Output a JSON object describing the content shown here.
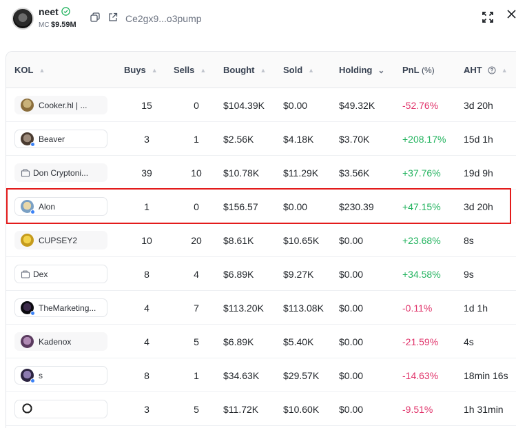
{
  "token": {
    "name": "neet",
    "mc_label": "MC",
    "mc_value": "$9.59M",
    "address": "Ce2gx9...o3pump"
  },
  "colors": {
    "positive": "#22b35e",
    "negative": "#e0336a",
    "highlight": "#e31b1b"
  },
  "table": {
    "columns": {
      "kol": "KOL",
      "buys": "Buys",
      "sells": "Sells",
      "bought": "Bought",
      "sold": "Sold",
      "holding": "Holding",
      "pnl": "PnL",
      "pnl_unit": "(%)",
      "aht": "AHT"
    },
    "rows": [
      {
        "kol": "Cooker.hl | ...",
        "buys": "15",
        "sells": "0",
        "bought": "$104.39K",
        "sold": "$0.00",
        "holding": "$49.32K",
        "pnl": "-52.76%",
        "aht": "3d 20h"
      },
      {
        "kol": "Beaver",
        "buys": "3",
        "sells": "1",
        "bought": "$2.56K",
        "sold": "$4.18K",
        "holding": "$3.70K",
        "pnl": "+208.17%",
        "aht": "15d 1h"
      },
      {
        "kol": "Don Cryptoni...",
        "buys": "39",
        "sells": "10",
        "bought": "$10.78K",
        "sold": "$11.29K",
        "holding": "$3.56K",
        "pnl": "+37.76%",
        "aht": "19d 9h"
      },
      {
        "kol": "Alon",
        "buys": "1",
        "sells": "0",
        "bought": "$156.57",
        "sold": "$0.00",
        "holding": "$230.39",
        "pnl": "+47.15%",
        "aht": "3d 20h"
      },
      {
        "kol": "CUPSEY2",
        "buys": "10",
        "sells": "20",
        "bought": "$8.61K",
        "sold": "$10.65K",
        "holding": "$0.00",
        "pnl": "+23.68%",
        "aht": "8s"
      },
      {
        "kol": "Dex",
        "buys": "8",
        "sells": "4",
        "bought": "$6.89K",
        "sold": "$9.27K",
        "holding": "$0.00",
        "pnl": "+34.58%",
        "aht": "9s"
      },
      {
        "kol": "TheMarketing...",
        "buys": "4",
        "sells": "7",
        "bought": "$113.20K",
        "sold": "$113.08K",
        "holding": "$0.00",
        "pnl": "-0.11%",
        "aht": "1d 1h"
      },
      {
        "kol": "Kadenox",
        "buys": "4",
        "sells": "5",
        "bought": "$6.89K",
        "sold": "$5.40K",
        "holding": "$0.00",
        "pnl": "-21.59%",
        "aht": "4s"
      },
      {
        "kol": "s",
        "buys": "8",
        "sells": "1",
        "bought": "$34.63K",
        "sold": "$29.57K",
        "holding": "$0.00",
        "pnl": "-14.63%",
        "aht": "18min 16s"
      },
      {
        "kol": "",
        "buys": "3",
        "sells": "5",
        "bought": "$11.72K",
        "sold": "$10.60K",
        "holding": "$0.00",
        "pnl": "-9.51%",
        "aht": "1h 31min"
      }
    ]
  }
}
